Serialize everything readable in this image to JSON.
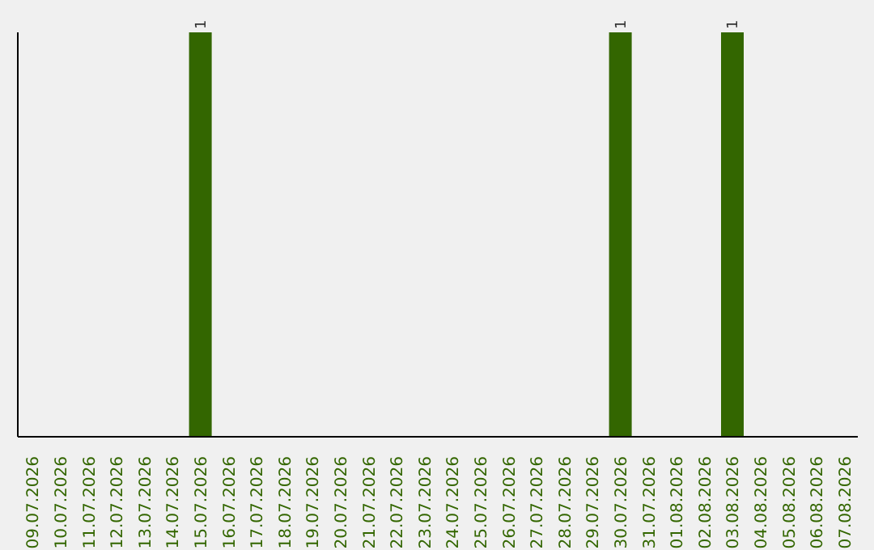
{
  "chart_data": {
    "type": "bar",
    "categories": [
      "09.07.2026",
      "10.07.2026",
      "11.07.2026",
      "12.07.2026",
      "13.07.2026",
      "14.07.2026",
      "15.07.2026",
      "16.07.2026",
      "17.07.2026",
      "18.07.2026",
      "19.07.2026",
      "20.07.2026",
      "21.07.2026",
      "22.07.2026",
      "23.07.2026",
      "24.07.2026",
      "25.07.2026",
      "26.07.2026",
      "27.07.2026",
      "28.07.2026",
      "29.07.2026",
      "30.07.2026",
      "31.07.2026",
      "01.08.2026",
      "02.08.2026",
      "03.08.2026",
      "04.08.2026",
      "05.08.2026",
      "06.08.2026",
      "07.08.2026"
    ],
    "values": [
      0,
      0,
      0,
      0,
      0,
      0,
      1,
      0,
      0,
      0,
      0,
      0,
      0,
      0,
      0,
      0,
      0,
      0,
      0,
      0,
      0,
      1,
      0,
      0,
      0,
      1,
      0,
      0,
      0,
      0
    ],
    "value_labels": [
      null,
      null,
      null,
      null,
      null,
      null,
      "1",
      null,
      null,
      null,
      null,
      null,
      null,
      null,
      null,
      null,
      null,
      null,
      null,
      null,
      null,
      "1",
      null,
      null,
      null,
      "1",
      null,
      null,
      null,
      null
    ],
    "color": "#336600",
    "ylim": [
      0,
      1
    ],
    "tick_labels": "x",
    "grid": false,
    "legend": false
  }
}
